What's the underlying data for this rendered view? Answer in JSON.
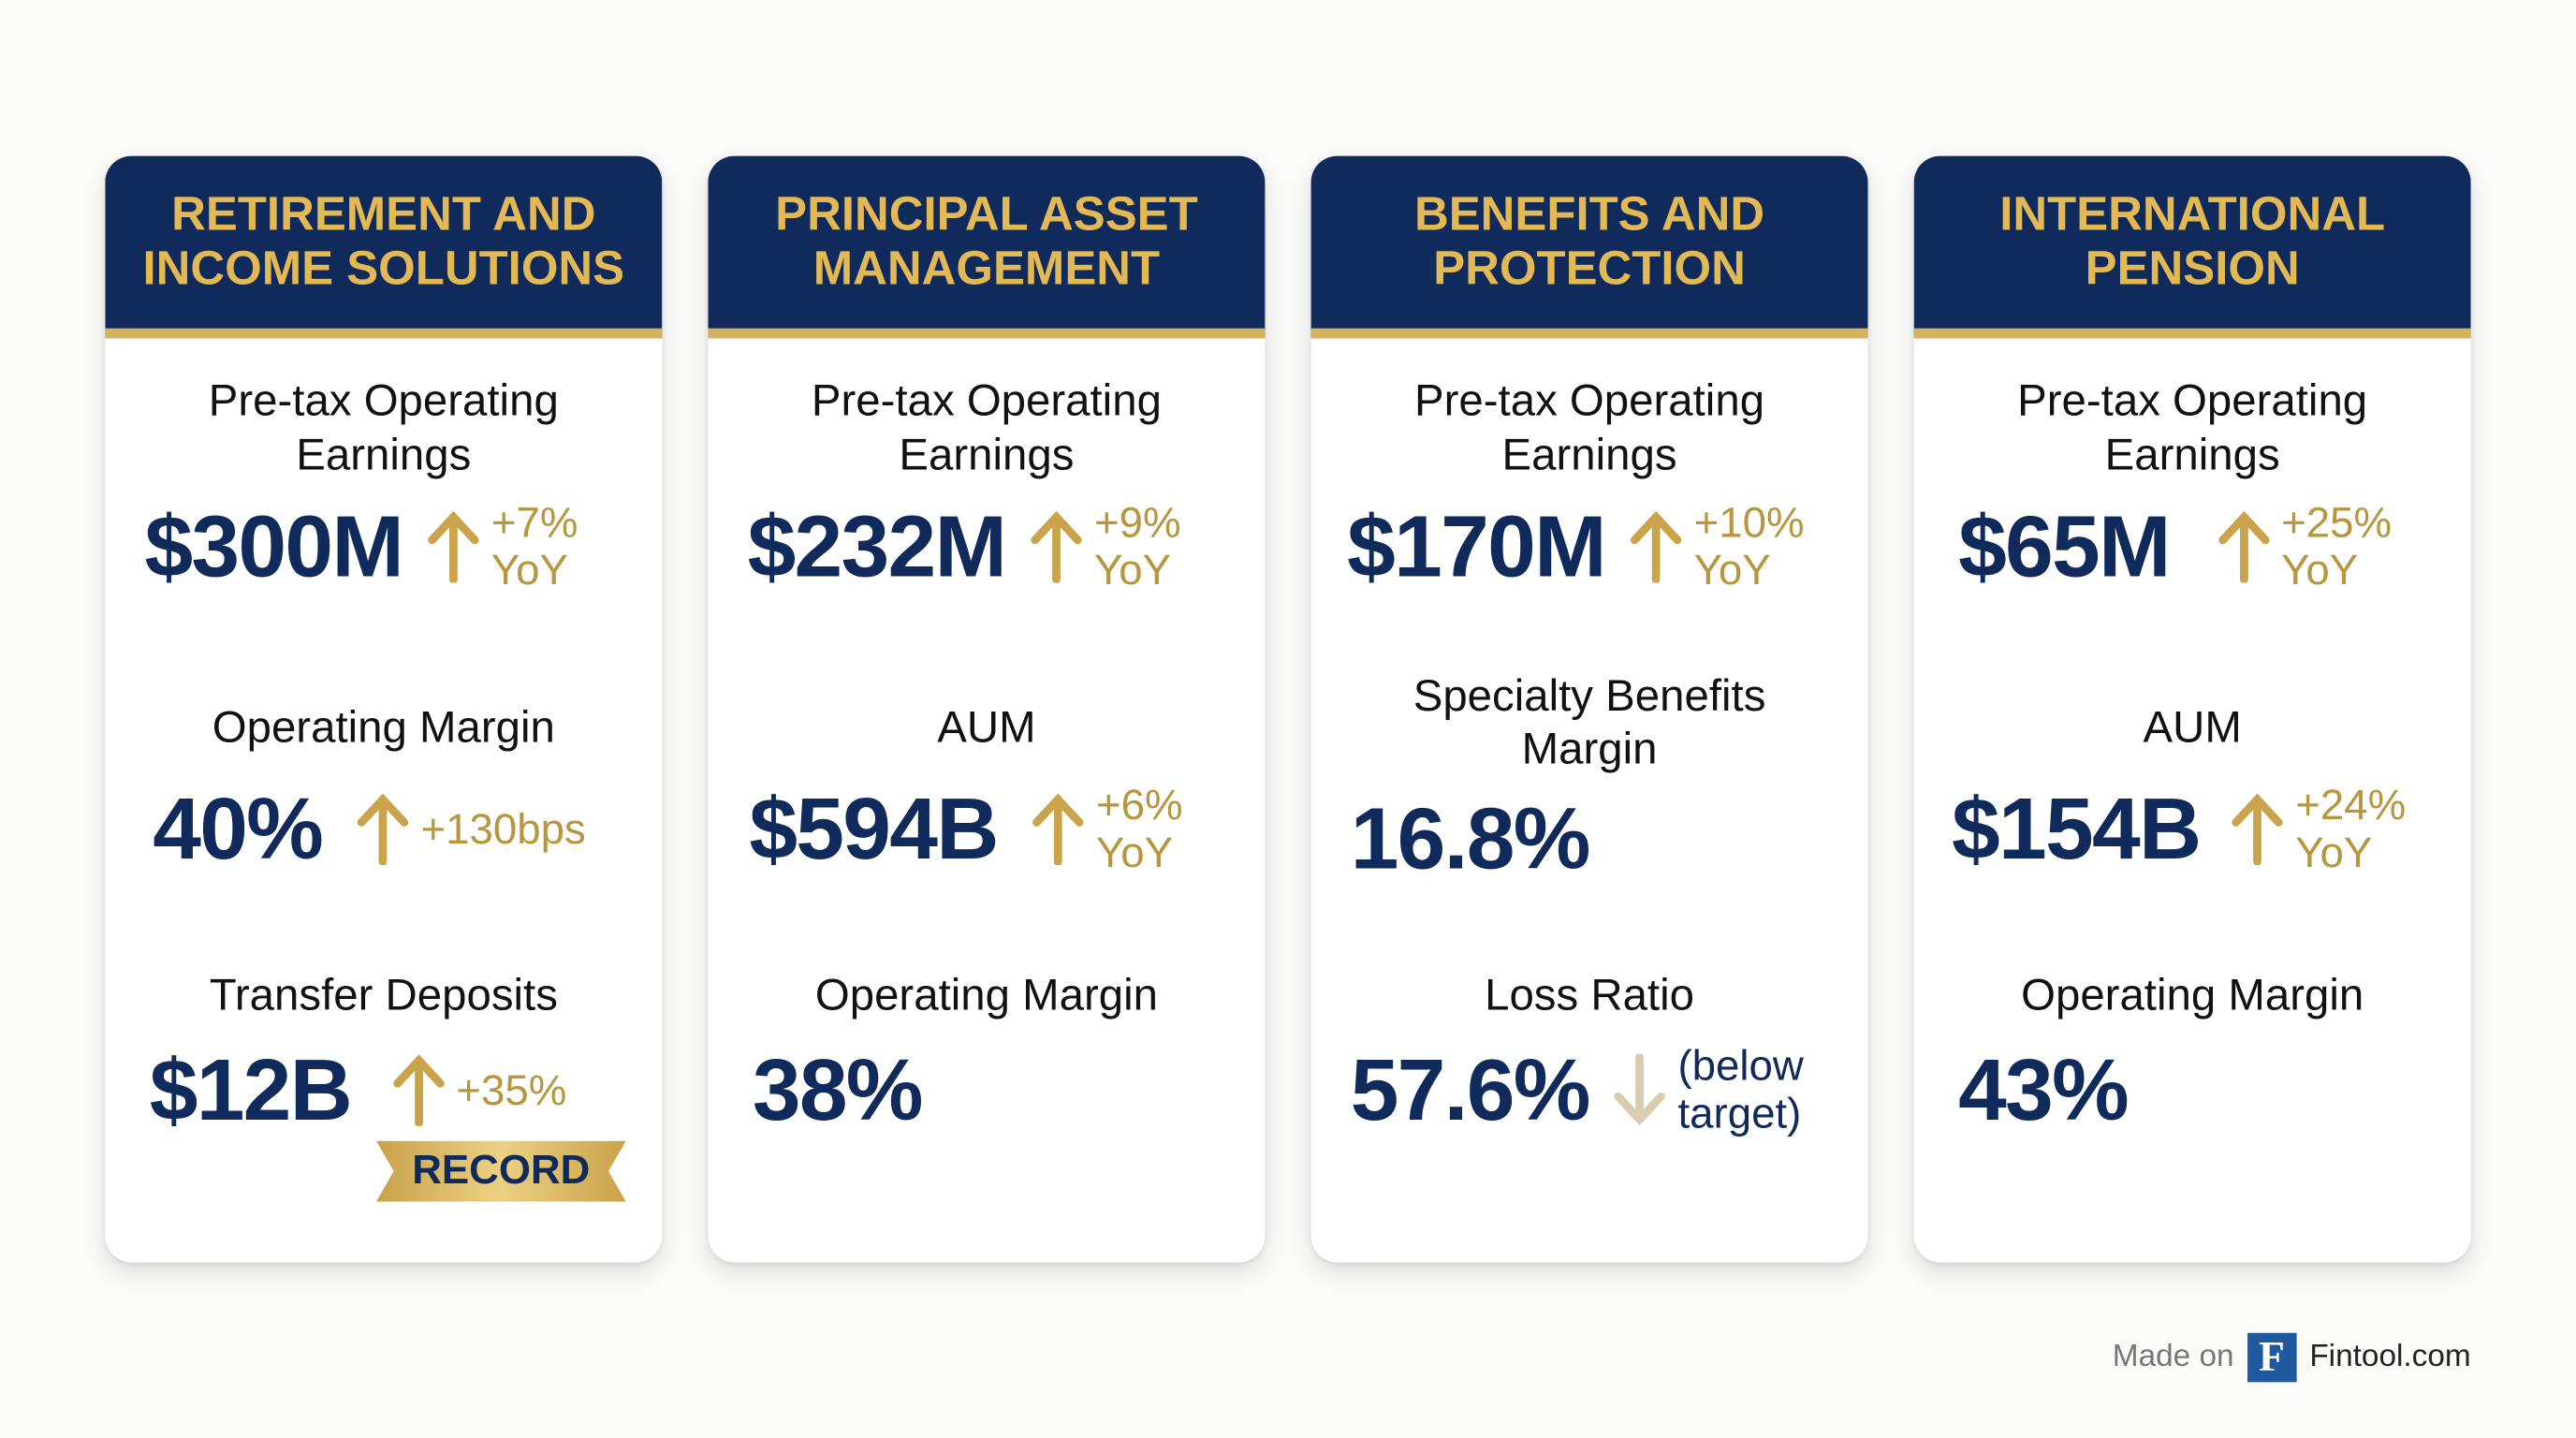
{
  "colors": {
    "navy": "#112a5c",
    "gold": "#b8963e",
    "header_text": "#e2b954",
    "muted_arrow": "#d9cdb0"
  },
  "cards": [
    {
      "title": "RETIREMENT AND INCOME SOLUTIONS",
      "metrics": [
        {
          "label": "Pre-tax Operating Earnings",
          "value": "$300M",
          "trend": "up",
          "delta": "+7%",
          "delta2": "YoY"
        },
        {
          "label": "Operating Margin",
          "value": "40%",
          "trend": "up",
          "delta": "+130bps"
        },
        {
          "label": "Transfer Deposits",
          "value": "$12B",
          "trend": "up",
          "delta": "+35%",
          "badge": "RECORD"
        }
      ]
    },
    {
      "title": "PRINCIPAL ASSET MANAGEMENT",
      "metrics": [
        {
          "label": "Pre-tax Operating Earnings",
          "value": "$232M",
          "trend": "up",
          "delta": "+9%",
          "delta2": "YoY"
        },
        {
          "label": "AUM",
          "value": "$594B",
          "trend": "up",
          "delta": "+6%",
          "delta2": "YoY"
        },
        {
          "label": "Operating Margin",
          "value": "38%"
        }
      ]
    },
    {
      "title": "BENEFITS AND PROTECTION",
      "metrics": [
        {
          "label": "Pre-tax Operating Earnings",
          "value": "$170M",
          "trend": "up",
          "delta": "+10%",
          "delta2": "YoY"
        },
        {
          "label": "Specialty Benefits Margin",
          "value": "16.8%"
        },
        {
          "label": "Loss Ratio",
          "value": "57.6%",
          "trend": "down",
          "note": "(below",
          "note2": "target)"
        }
      ]
    },
    {
      "title": "INTERNATIONAL PENSION",
      "metrics": [
        {
          "label": "Pre-tax Operating Earnings",
          "value": "$65M",
          "trend": "up",
          "delta": "+25%",
          "delta2": "YoY"
        },
        {
          "label": "AUM",
          "value": "$154B",
          "trend": "up",
          "delta": "+24%",
          "delta2": "YoY"
        },
        {
          "label": "Operating Margin",
          "value": "43%"
        }
      ]
    }
  ],
  "footer": {
    "made_on": "Made on",
    "logo_letter": "F",
    "brand": "Fintool.com"
  }
}
